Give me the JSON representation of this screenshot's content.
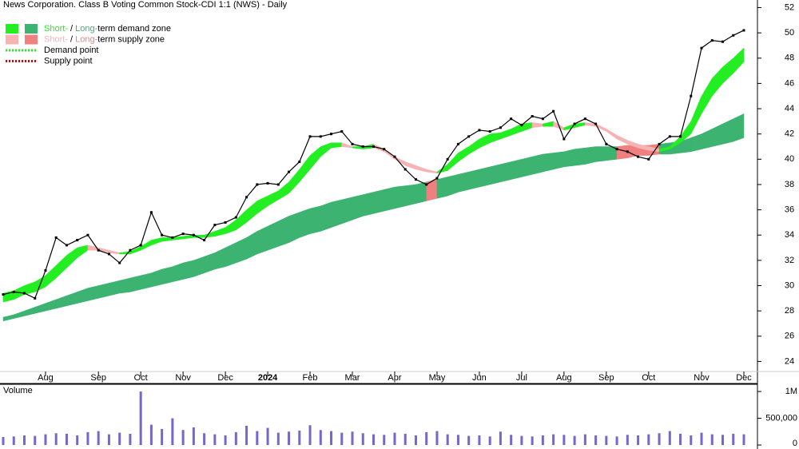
{
  "chart_data": {
    "type": "stock",
    "title": "News Corporation. Class B Voting Common Stock-CDI 1:1 (NWS) - Daily",
    "categories": [
      null,
      null,
      null,
      null,
      "Aug",
      null,
      null,
      null,
      null,
      "Sep",
      null,
      null,
      null,
      "Oct",
      null,
      null,
      null,
      "Nov",
      null,
      null,
      null,
      "Dec",
      null,
      null,
      null,
      "2024",
      null,
      null,
      null,
      "Feb",
      null,
      null,
      null,
      "Mar",
      null,
      null,
      null,
      "Apr",
      null,
      null,
      null,
      "May",
      null,
      null,
      null,
      "Jun",
      null,
      null,
      null,
      "Jul",
      null,
      null,
      null,
      "Aug",
      null,
      null,
      null,
      "Sep",
      null,
      null,
      null,
      "Oct",
      null,
      null,
      null,
      null,
      "Nov",
      null,
      null,
      null,
      "Dec"
    ],
    "close": [
      29.3,
      29.5,
      29.4,
      29.0,
      31.2,
      33.8,
      33.2,
      33.6,
      34.0,
      32.8,
      32.5,
      31.8,
      32.8,
      33.2,
      35.8,
      34.0,
      33.8,
      34.1,
      34.0,
      33.6,
      34.8,
      35.0,
      35.4,
      37.0,
      38.0,
      38.1,
      38.0,
      39.0,
      39.8,
      41.8,
      41.8,
      42.0,
      42.2,
      41.2,
      41.0,
      41.0,
      40.8,
      40.2,
      39.2,
      38.4,
      38.0,
      38.5,
      40.0,
      41.2,
      41.8,
      42.3,
      42.2,
      42.5,
      43.2,
      42.7,
      43.4,
      43.2,
      43.8,
      41.6,
      42.8,
      43.2,
      42.8,
      41.2,
      40.8,
      40.6,
      40.2,
      40.0,
      41.2,
      41.8,
      41.8,
      45.0,
      48.8,
      49.4,
      49.3,
      49.8,
      50.2
    ],
    "color": "#000000",
    "short_upper": [
      29.4,
      29.6,
      30.0,
      30.3,
      30.8,
      31.6,
      32.4,
      33.0,
      33.2,
      33.0,
      32.8,
      32.6,
      32.7,
      33.1,
      33.6,
      33.8,
      33.8,
      33.9,
      34.0,
      34.0,
      34.3,
      34.6,
      35.2,
      36.0,
      36.7,
      37.1,
      37.5,
      38.2,
      39.2,
      40.3,
      41.0,
      41.3,
      41.3,
      41.0,
      41.0,
      41.2,
      40.8,
      40.2,
      39.8,
      39.5,
      39.2,
      39.0,
      39.6,
      40.5,
      41.0,
      41.6,
      42.0,
      42.1,
      42.4,
      42.8,
      42.9,
      42.8,
      43.0,
      42.5,
      42.8,
      42.9,
      42.8,
      42.4,
      41.9,
      41.5,
      41.2,
      41.0,
      40.8,
      41.0,
      41.8,
      43.0,
      45.0,
      46.4,
      47.3,
      48.0,
      48.8
    ],
    "short_lower": [
      28.7,
      28.9,
      29.3,
      29.5,
      29.9,
      30.6,
      31.4,
      32.2,
      32.8,
      32.8,
      32.6,
      32.5,
      32.5,
      32.8,
      33.2,
      33.5,
      33.6,
      33.7,
      33.8,
      33.8,
      33.9,
      34.1,
      34.4,
      35.0,
      35.7,
      36.3,
      36.8,
      37.3,
      38.2,
      39.2,
      40.2,
      40.9,
      41.0,
      40.9,
      40.8,
      40.9,
      40.6,
      40.0,
      39.5,
      39.2,
      39.0,
      38.9,
      39.1,
      39.8,
      40.4,
      40.9,
      41.3,
      41.6,
      41.9,
      42.2,
      42.5,
      42.6,
      42.6,
      42.3,
      42.5,
      42.7,
      42.6,
      42.2,
      41.6,
      41.2,
      40.9,
      40.7,
      40.6,
      40.8,
      41.3,
      42.0,
      43.6,
      45.0,
      46.0,
      46.8,
      47.7
    ],
    "long_upper": [
      27.5,
      27.7,
      28.0,
      28.3,
      28.6,
      28.9,
      29.2,
      29.5,
      29.8,
      30.0,
      30.2,
      30.4,
      30.6,
      30.8,
      31.0,
      31.3,
      31.5,
      31.8,
      32.0,
      32.3,
      32.6,
      33.0,
      33.4,
      33.8,
      34.3,
      34.7,
      35.1,
      35.5,
      35.8,
      36.1,
      36.3,
      36.6,
      36.8,
      37.0,
      37.2,
      37.4,
      37.6,
      37.8,
      37.9,
      38.0,
      38.2,
      38.4,
      38.6,
      38.8,
      39.0,
      39.2,
      39.4,
      39.6,
      39.8,
      40.0,
      40.2,
      40.4,
      40.5,
      40.6,
      40.8,
      40.9,
      41.0,
      41.0,
      41.0,
      41.1,
      41.1,
      41.1,
      41.2,
      41.3,
      41.4,
      41.7,
      42.0,
      42.4,
      42.8,
      43.2,
      43.6
    ],
    "long_lower": [
      27.2,
      27.4,
      27.6,
      27.8,
      28.0,
      28.2,
      28.4,
      28.6,
      28.8,
      29.0,
      29.2,
      29.4,
      29.5,
      29.7,
      29.9,
      30.1,
      30.3,
      30.5,
      30.7,
      31.0,
      31.3,
      31.5,
      31.8,
      32.1,
      32.5,
      32.8,
      33.1,
      33.4,
      33.8,
      34.1,
      34.3,
      34.6,
      34.9,
      35.2,
      35.5,
      35.7,
      35.9,
      36.1,
      36.3,
      36.5,
      36.7,
      36.9,
      37.1,
      37.4,
      37.6,
      37.8,
      38.0,
      38.2,
      38.4,
      38.6,
      38.8,
      39.0,
      39.2,
      39.4,
      39.5,
      39.6,
      39.8,
      39.9,
      40.0,
      40.1,
      40.3,
      40.3,
      40.4,
      40.4,
      40.5,
      40.6,
      40.8,
      41.0,
      41.2,
      41.4,
      41.7
    ],
    "ylim": [
      22.7,
      52.6
    ],
    "yticks": [
      24,
      26,
      28,
      30,
      32,
      34,
      36,
      38,
      40,
      42,
      44,
      46,
      48,
      50,
      52
    ],
    "legend": [
      {
        "short": "Short-",
        "sep": " / ",
        "long": "Long-",
        "rest": "term demand zone",
        "short_color": "#22ee22",
        "long_color": "#3cb371"
      },
      {
        "short": "Short-",
        "sep": " / ",
        "long": "Long-",
        "rest": "term supply zone",
        "short_color": "#f7b3b3",
        "long_color": "#f07f7f"
      },
      {
        "text": "Demand point",
        "color": "#22ee22"
      },
      {
        "text": "Supply point",
        "color": "#dd0000"
      }
    ],
    "volume": {
      "label": "Volume",
      "color": "#7766cc",
      "values": [
        150000,
        160000,
        180000,
        170000,
        200000,
        220000,
        210000,
        180000,
        240000,
        260000,
        200000,
        230000,
        210000,
        1000000,
        380000,
        300000,
        500000,
        280000,
        330000,
        220000,
        200000,
        180000,
        240000,
        360000,
        260000,
        320000,
        230000,
        250000,
        270000,
        370000,
        280000,
        260000,
        230000,
        250000,
        220000,
        200000,
        190000,
        230000,
        210000,
        180000,
        240000,
        260000,
        200000,
        190000,
        170000,
        180000,
        160000,
        250000,
        190000,
        170000,
        160000,
        180000,
        200000,
        190000,
        170000,
        200000,
        180000,
        170000,
        160000,
        190000,
        180000,
        200000,
        220000,
        260000,
        210000,
        180000,
        230000,
        200000,
        190000,
        210000,
        200000
      ],
      "ylim": [
        0,
        1120000
      ],
      "yticks": [
        0,
        {
          "value": 500000,
          "label": "500,000"
        },
        {
          "value": 1000000,
          "label": "1M"
        }
      ]
    }
  }
}
